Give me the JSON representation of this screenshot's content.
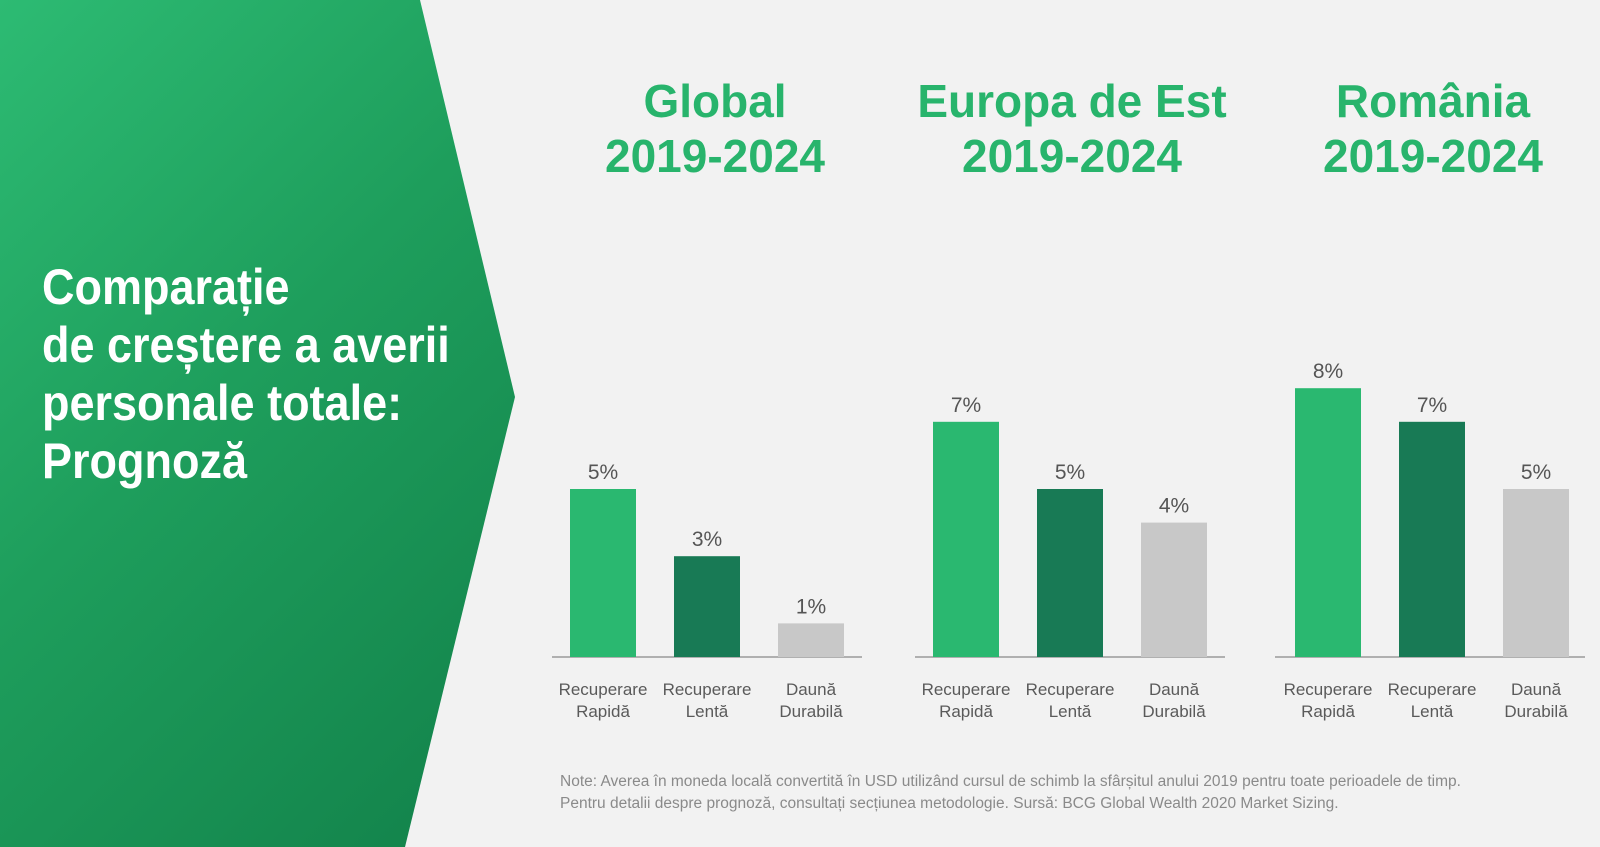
{
  "title": {
    "lines": [
      "Comparație",
      "de creștere a averii",
      "personale totale:",
      "Prognoză"
    ]
  },
  "colors": {
    "panel_green": "#1e9e5c",
    "title_green": "#28b46c",
    "rapid": "#2ab870",
    "lent": "#187a55",
    "durabila": "#c8c8c8",
    "axis": "#9a9a9a"
  },
  "chart_data": [
    {
      "type": "bar",
      "title": [
        "Global",
        "2019-2024"
      ],
      "categories": [
        [
          "Recuperare",
          "Rapidă"
        ],
        [
          "Recuperare",
          "Lentă"
        ],
        [
          "Daună",
          "Durabilă"
        ]
      ],
      "values": [
        5,
        3,
        1
      ],
      "labels": [
        "5%",
        "3%",
        "1%"
      ],
      "ylabel": "",
      "xlabel": "",
      "grid": false
    },
    {
      "type": "bar",
      "title": [
        "Europa de Est",
        "2019-2024"
      ],
      "categories": [
        [
          "Recuperare",
          "Rapidă"
        ],
        [
          "Recuperare",
          "Lentă"
        ],
        [
          "Daună",
          "Durabilă"
        ]
      ],
      "values": [
        7,
        5,
        4
      ],
      "labels": [
        "7%",
        "5%",
        "4%"
      ],
      "ylabel": "",
      "xlabel": "",
      "grid": false
    },
    {
      "type": "bar",
      "title": [
        "România",
        "2019-2024"
      ],
      "categories": [
        [
          "Recuperare",
          "Rapidă"
        ],
        [
          "Recuperare",
          "Lentă"
        ],
        [
          "Daună",
          "Durabilă"
        ]
      ],
      "values": [
        8,
        7,
        5
      ],
      "labels": [
        "8%",
        "7%",
        "5%"
      ],
      "ylabel": "",
      "xlabel": "",
      "grid": false
    }
  ],
  "note": {
    "lines": [
      "Note: Averea în moneda locală convertită în USD utilizând cursul de schimb la sfârșitul anului 2019 pentru toate perioadele de timp.",
      "Pentru detalii despre prognoză, consultați secțiunea metodologie. Sursă: BCG Global Wealth 2020 Market Sizing."
    ]
  }
}
